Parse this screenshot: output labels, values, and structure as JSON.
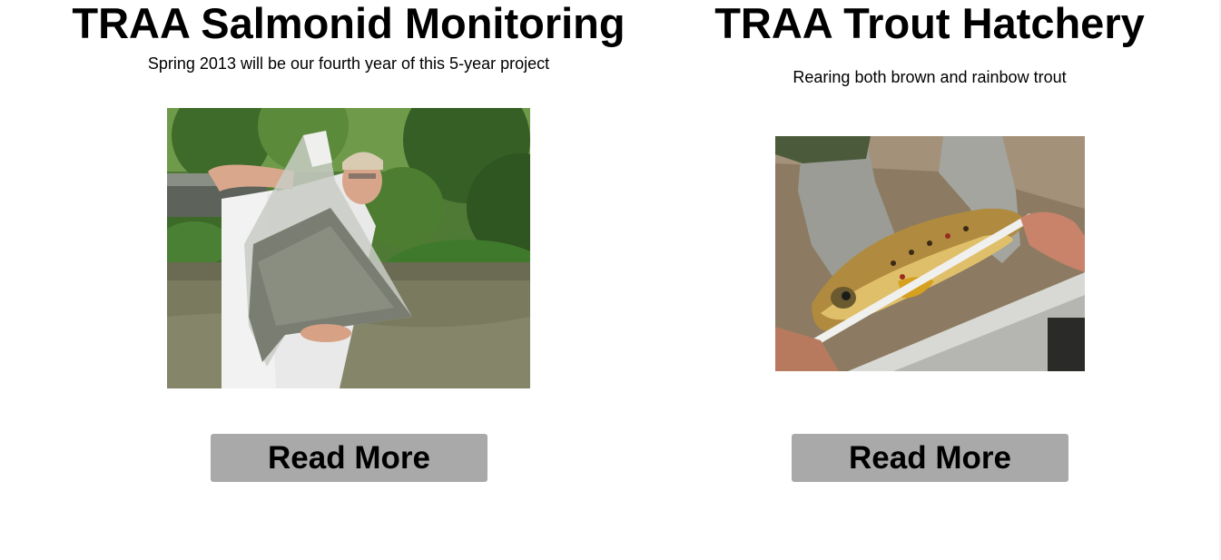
{
  "cards": [
    {
      "title": "TRAA Salmonid Monitoring",
      "subtitle": "Spring 2013 will be our fourth year of this 5-year project",
      "button_label": "Read More",
      "image_alt": "Man holding a bag of young salmonids by a river"
    },
    {
      "title": "TRAA Trout Hatchery",
      "subtitle": "Rearing both brown and rainbow trout",
      "button_label": "Read More",
      "image_alt": "Gloved hands measuring a brown trout"
    }
  ],
  "colors": {
    "button_bg": "#a9a9a9",
    "text": "#000000",
    "background": "#ffffff"
  }
}
